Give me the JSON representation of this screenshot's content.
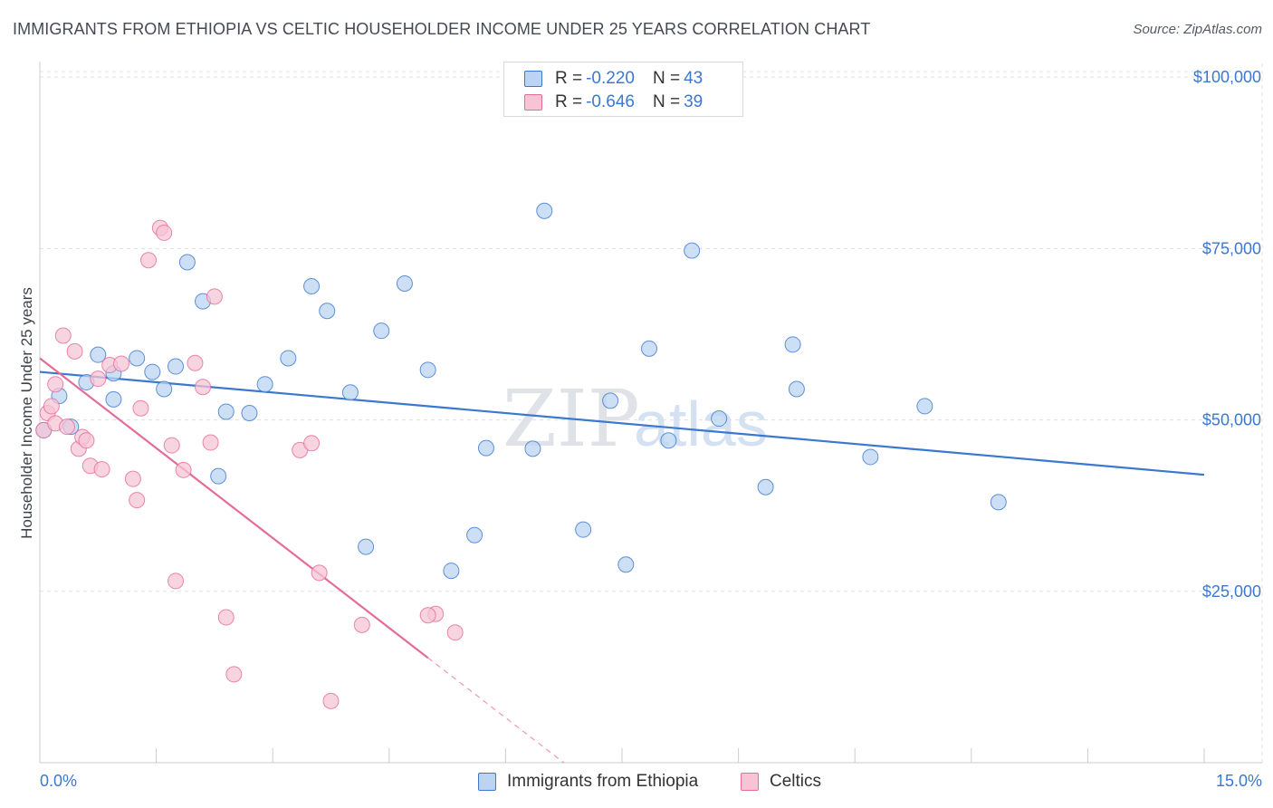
{
  "title": "IMMIGRANTS FROM ETHIOPIA VS CELTIC HOUSEHOLDER INCOME UNDER 25 YEARS CORRELATION CHART",
  "source": "Source: ZipAtlas.com",
  "watermark": {
    "zip": "ZIP",
    "atlas": "atlas"
  },
  "colors": {
    "blue": "#3b78d0",
    "blue_fill": "#bcd4f2",
    "pink": "#e56b98",
    "pink_fill": "#f6c4d5",
    "grid": "#dde0e4"
  },
  "legend": [
    {
      "r_label": "R =",
      "r_value": "-0.220",
      "n_label": "N =",
      "n_value": "43"
    },
    {
      "r_label": "R =",
      "r_value": "-0.646",
      "n_label": "N =",
      "n_value": "39"
    }
  ],
  "chart_data": {
    "type": "scatter",
    "title": "IMMIGRANTS FROM ETHIOPIA VS CELTIC HOUSEHOLDER INCOME UNDER 25 YEARS CORRELATION CHART",
    "xlabel": "",
    "ylabel": "Householder Income Under 25 years",
    "xlim": [
      0,
      15
    ],
    "ylim": [
      0,
      102000
    ],
    "x_tick_labels": [
      "0.0%",
      "15.0%"
    ],
    "y_ticks": [
      25000,
      50000,
      75000,
      100000
    ],
    "y_tick_labels": [
      "$25,000",
      "$50,000",
      "$75,000",
      "$100,000"
    ],
    "grid": true,
    "legend_position": "top-center",
    "series": [
      {
        "name": "Immigrants from Ethiopia",
        "color": "#3b78d0",
        "points": [
          [
            0.05,
            48500
          ],
          [
            0.25,
            53500
          ],
          [
            0.4,
            49000
          ],
          [
            0.6,
            55500
          ],
          [
            0.75,
            59500
          ],
          [
            0.95,
            56800
          ],
          [
            0.95,
            53000
          ],
          [
            1.25,
            59000
          ],
          [
            1.45,
            57000
          ],
          [
            1.6,
            54500
          ],
          [
            1.75,
            57800
          ],
          [
            1.9,
            73000
          ],
          [
            2.1,
            67300
          ],
          [
            2.3,
            41800
          ],
          [
            2.4,
            51200
          ],
          [
            2.7,
            51000
          ],
          [
            2.9,
            55200
          ],
          [
            3.2,
            59000
          ],
          [
            3.5,
            69500
          ],
          [
            3.7,
            65900
          ],
          [
            4.0,
            54000
          ],
          [
            4.2,
            31500
          ],
          [
            4.4,
            63000
          ],
          [
            4.7,
            69900
          ],
          [
            5.0,
            57300
          ],
          [
            5.3,
            28000
          ],
          [
            5.6,
            33200
          ],
          [
            5.75,
            45900
          ],
          [
            6.35,
            45800
          ],
          [
            6.5,
            80500
          ],
          [
            7.0,
            34000
          ],
          [
            7.35,
            52800
          ],
          [
            7.55,
            28900
          ],
          [
            7.85,
            60400
          ],
          [
            8.1,
            47000
          ],
          [
            8.4,
            74700
          ],
          [
            8.75,
            50200
          ],
          [
            9.35,
            40200
          ],
          [
            9.7,
            61000
          ],
          [
            9.75,
            54500
          ],
          [
            10.7,
            44600
          ],
          [
            11.4,
            52000
          ],
          [
            12.35,
            38000
          ]
        ],
        "trend": {
          "x": [
            0,
            15
          ],
          "y": [
            57000,
            42000
          ]
        }
      },
      {
        "name": "Celtics",
        "color": "#e56b98",
        "points": [
          [
            0.05,
            48500
          ],
          [
            0.1,
            51000
          ],
          [
            0.15,
            52000
          ],
          [
            0.2,
            55200
          ],
          [
            0.2,
            49500
          ],
          [
            0.3,
            62300
          ],
          [
            0.35,
            49000
          ],
          [
            0.45,
            60000
          ],
          [
            0.5,
            45800
          ],
          [
            0.55,
            47500
          ],
          [
            0.6,
            47000
          ],
          [
            0.65,
            43300
          ],
          [
            0.75,
            56000
          ],
          [
            0.8,
            42800
          ],
          [
            0.9,
            58000
          ],
          [
            1.05,
            58200
          ],
          [
            1.2,
            41400
          ],
          [
            1.25,
            38300
          ],
          [
            1.3,
            51700
          ],
          [
            1.4,
            73300
          ],
          [
            1.55,
            78000
          ],
          [
            1.6,
            77300
          ],
          [
            1.7,
            46300
          ],
          [
            1.75,
            26500
          ],
          [
            1.85,
            42700
          ],
          [
            2.0,
            58300
          ],
          [
            2.1,
            54800
          ],
          [
            2.2,
            46700
          ],
          [
            2.25,
            68000
          ],
          [
            2.4,
            21200
          ],
          [
            2.5,
            12900
          ],
          [
            3.35,
            45600
          ],
          [
            3.5,
            46600
          ],
          [
            3.6,
            27700
          ],
          [
            3.75,
            9000
          ],
          [
            4.15,
            20100
          ],
          [
            5.1,
            21700
          ],
          [
            5.35,
            19000
          ],
          [
            5.0,
            21500
          ]
        ],
        "trend": {
          "x": [
            0,
            5
          ],
          "y": [
            59000,
            15300
          ]
        },
        "trend_dashed": {
          "x": [
            5,
            6.75
          ],
          "y": [
            15300,
            0
          ]
        }
      }
    ]
  }
}
